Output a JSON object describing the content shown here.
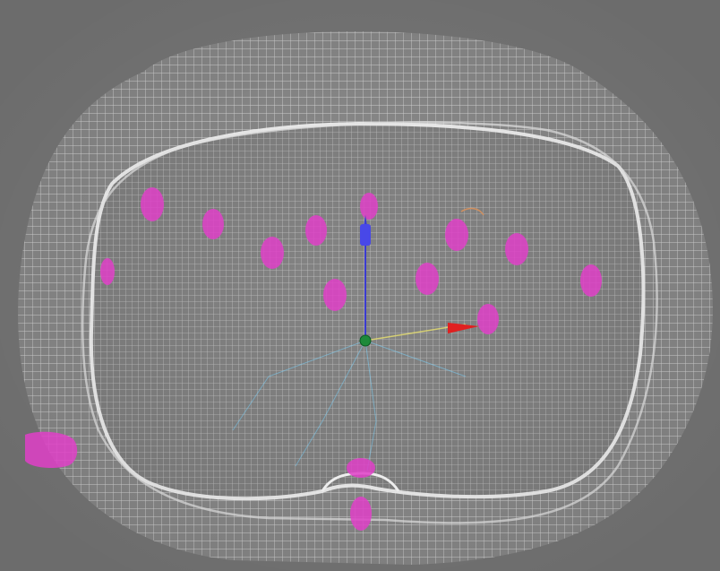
{
  "viewport": {
    "background_color": "#7b7b7b"
  },
  "scene": {
    "subject": "3d-wireframe-cross-section",
    "mesh_color": "#ffffff",
    "marker_color": "#e040c8",
    "marker_count": 18,
    "axis_gizmo": {
      "y_axis_color": "#3a3ad0",
      "x_axis_color": "#e02020",
      "origin_color": "#1e8a3a",
      "helper_line_color": "#7fd6ff"
    }
  }
}
